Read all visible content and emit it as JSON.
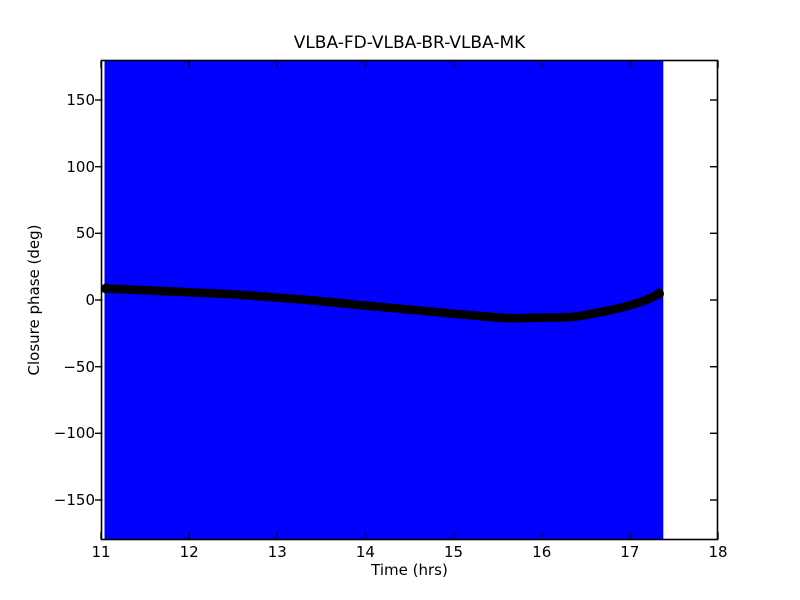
{
  "figure": {
    "background": "#ffffff",
    "foreground": "#000000"
  },
  "chart_data": {
    "type": "scatter",
    "title": "VLBA-FD-VLBA-BR-VLBA-MK",
    "xlabel": "Time (hrs)",
    "ylabel": "Closure phase (deg)",
    "xlim": [
      11,
      18
    ],
    "ylim": [
      -180,
      180
    ],
    "grid": false,
    "legend": null,
    "x_ticks": {
      "values": [
        11,
        12,
        13,
        14,
        15,
        16,
        17,
        18
      ],
      "labels": [
        "11",
        "12",
        "13",
        "14",
        "15",
        "16",
        "17",
        "18"
      ]
    },
    "y_ticks": {
      "values": [
        -150,
        -100,
        -50,
        0,
        50,
        100,
        150
      ],
      "labels": [
        "−150",
        "−100",
        "−50",
        "0",
        "50",
        "100",
        "150"
      ]
    },
    "error_region": {
      "description": "closure-phase error bars spanning the full y-range at every sample, merged into a solid band",
      "t_start": 11.04,
      "t_end": 17.38,
      "y_min": -180,
      "y_max": 180,
      "color": "#0000ff"
    },
    "series": [
      {
        "name": "closure phase",
        "marker": "circle",
        "color": "#000000",
        "marker_diameter_px": 9,
        "t_start": 11.06,
        "t_end": 17.33,
        "n_points": 170,
        "control_points": [
          [
            11.06,
            8.6
          ],
          [
            11.5,
            7.3
          ],
          [
            12.0,
            5.8
          ],
          [
            12.5,
            4.2
          ],
          [
            13.0,
            1.8
          ],
          [
            13.35,
            0.0
          ],
          [
            14.0,
            -4.2
          ],
          [
            14.6,
            -7.8
          ],
          [
            15.0,
            -10.3
          ],
          [
            15.3,
            -12.0
          ],
          [
            15.62,
            -13.6
          ],
          [
            16.0,
            -13.2
          ],
          [
            16.35,
            -12.6
          ],
          [
            16.65,
            -9.3
          ],
          [
            16.9,
            -5.8
          ],
          [
            17.1,
            -2.0
          ],
          [
            17.22,
            1.0
          ],
          [
            17.33,
            4.8
          ]
        ]
      }
    ]
  }
}
